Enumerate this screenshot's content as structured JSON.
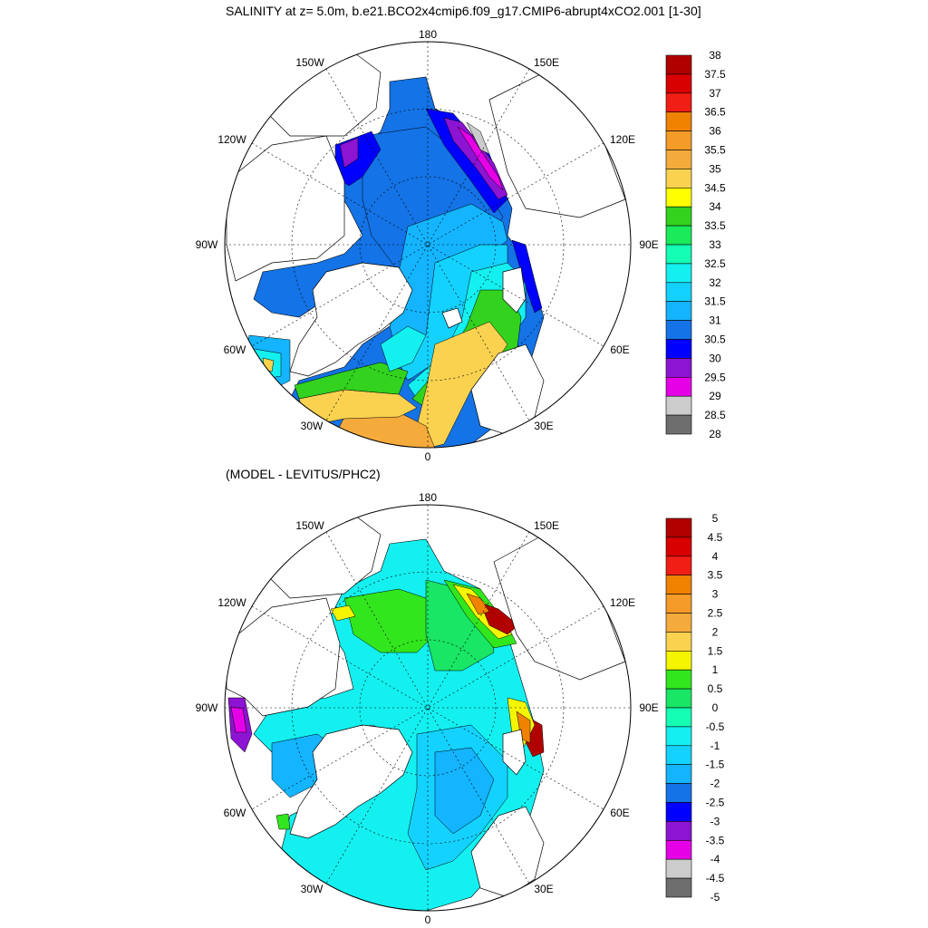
{
  "panels": [
    {
      "title": "SALINITY at z=   5.0m, b.e21.BCO2x4cmip6.f09_g17.CMIP6-abrupt4xCO2.001 [1-30]",
      "lon_labels": {
        "top": "180",
        "150W": "150W",
        "150E": "150E",
        "120W": "120W",
        "120E": "120E",
        "90W": "90W",
        "90E": "90E",
        "60W": "60W",
        "60E": "60E",
        "30W": "30W",
        "30E": "30E",
        "bottom": "0"
      },
      "colorbar": {
        "labels": [
          "38",
          "37.5",
          "37",
          "36.5",
          "36",
          "35.5",
          "35",
          "34.5",
          "34",
          "33.5",
          "33",
          "32.5",
          "32",
          "31.5",
          "31",
          "30.5",
          "30",
          "29.5",
          "29",
          "28.5",
          "28"
        ],
        "colors": [
          "#b00000",
          "#d80000",
          "#f01e14",
          "#f08200",
          "#f59b28",
          "#f5aa3c",
          "#fad250",
          "#ffff00",
          "#32d21e",
          "#19eb5a",
          "#14ffb4",
          "#14f0f0",
          "#14d2ff",
          "#14b4ff",
          "#1473e6",
          "#0000ff",
          "#8c14d2",
          "#e600e6",
          "#cccccc",
          "#6e6e6e"
        ]
      }
    },
    {
      "title": "(MODEL - LEVITUS/PHC2)",
      "lon_labels": {
        "top": "180",
        "150W": "150W",
        "150E": "150E",
        "120W": "120W",
        "120E": "120E",
        "90W": "90W",
        "90E": "90E",
        "60W": "60W",
        "60E": "60E",
        "30W": "30W",
        "30E": "30E",
        "bottom": "0"
      },
      "colorbar": {
        "labels": [
          "5",
          "4.5",
          "4",
          "3.5",
          "3",
          "2.5",
          "2",
          "1.5",
          "1",
          "0.5",
          "0",
          "-0.5",
          "-1",
          "-1.5",
          "-2",
          "-2.5",
          "-3",
          "-3.5",
          "-4",
          "-4.5",
          "-5"
        ],
        "colors": [
          "#b00000",
          "#d80000",
          "#f01e14",
          "#f08200",
          "#f59b28",
          "#f5aa3c",
          "#fad250",
          "#f5f500",
          "#32e61e",
          "#19e664",
          "#14ffb4",
          "#14f0f0",
          "#14d2ff",
          "#14b4ff",
          "#1473e6",
          "#0000ff",
          "#8c14d2",
          "#e600e6",
          "#cccccc",
          "#6e6e6e"
        ]
      }
    }
  ],
  "map_colors": {
    "land": "#ffffff",
    "ocean_top": [
      "#1473e6",
      "#14b4ff",
      "#14d2ff",
      "#14f0f0",
      "#32d21e",
      "#fad250",
      "#f5aa3c",
      "#0000ff",
      "#8c14d2",
      "#e600e6",
      "#cccccc"
    ],
    "ocean_bottom": [
      "#14f0f0",
      "#14d2ff",
      "#14b4ff",
      "#32e61e",
      "#19e664",
      "#f5f500",
      "#b00000",
      "#0000ff",
      "#8c14d2",
      "#e600e6"
    ]
  }
}
